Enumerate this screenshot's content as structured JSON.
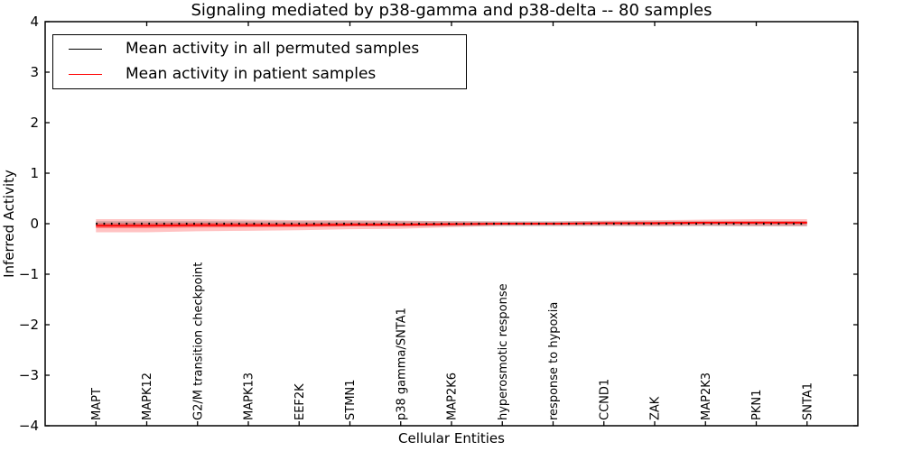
{
  "title": "Signaling mediated by p38-gamma and p38-delta -- 80 samples",
  "axes": {
    "xlabel": "Cellular Entities",
    "ylabel": "Inferred Activity"
  },
  "legend": {
    "position": "upper left",
    "items": [
      {
        "label": "Mean activity in all permuted samples",
        "color": "#000000"
      },
      {
        "label": "Mean activity in patient samples",
        "color": "#ff0000"
      }
    ]
  },
  "chart_data": {
    "type": "line",
    "title": "Signaling mediated by p38-gamma and p38-delta -- 80 samples",
    "xlabel": "Cellular Entities",
    "ylabel": "Inferred Activity",
    "grid": false,
    "ylim": [
      -4,
      4
    ],
    "xlim": [
      -1,
      15
    ],
    "yticks": [
      -4,
      -3,
      -2,
      -1,
      0,
      1,
      2,
      3,
      4
    ],
    "top_tick_indices": [
      1,
      3,
      5,
      7,
      9,
      11,
      13
    ],
    "categories": [
      "MAPT",
      "MAPK12",
      "G2/M transition checkpoint",
      "MAPK13",
      "EEF2K",
      "STMN1",
      "p38 gamma/SNTA1",
      "MAP2K6",
      "hyperosmotic response",
      "response to hypoxia",
      "CCND1",
      "ZAK",
      "MAP2K3",
      "PKN1",
      "SNTA1"
    ],
    "series": [
      {
        "name": "Mean activity in all permuted samples",
        "color": "#000000",
        "line_style": "dotted",
        "values": [
          0,
          0,
          0,
          0,
          0,
          0,
          0,
          0,
          0,
          0,
          0,
          0,
          0,
          0,
          0
        ],
        "band_halfwidth": [
          0.05,
          0.05,
          0.05,
          0.05,
          0.05,
          0.05,
          0.05,
          0.05,
          0.05,
          0.05,
          0.05,
          0.05,
          0.05,
          0.05,
          0.05
        ],
        "band_color": "rgba(0,0,0,0.17)"
      },
      {
        "name": "Mean activity in patient samples",
        "color": "#ff0000",
        "line_style": "solid",
        "values": [
          -0.04,
          -0.04,
          -0.03,
          -0.03,
          -0.03,
          -0.02,
          -0.02,
          -0.01,
          0,
          0,
          0.01,
          0.01,
          0.02,
          0.02,
          0.02
        ],
        "band_halfwidth": [
          0.13,
          0.13,
          0.12,
          0.11,
          0.1,
          0.09,
          0.08,
          0.06,
          0.04,
          0.04,
          0.05,
          0.06,
          0.06,
          0.07,
          0.07
        ],
        "band_color": "rgba(255,0,0,0.24)"
      }
    ]
  }
}
